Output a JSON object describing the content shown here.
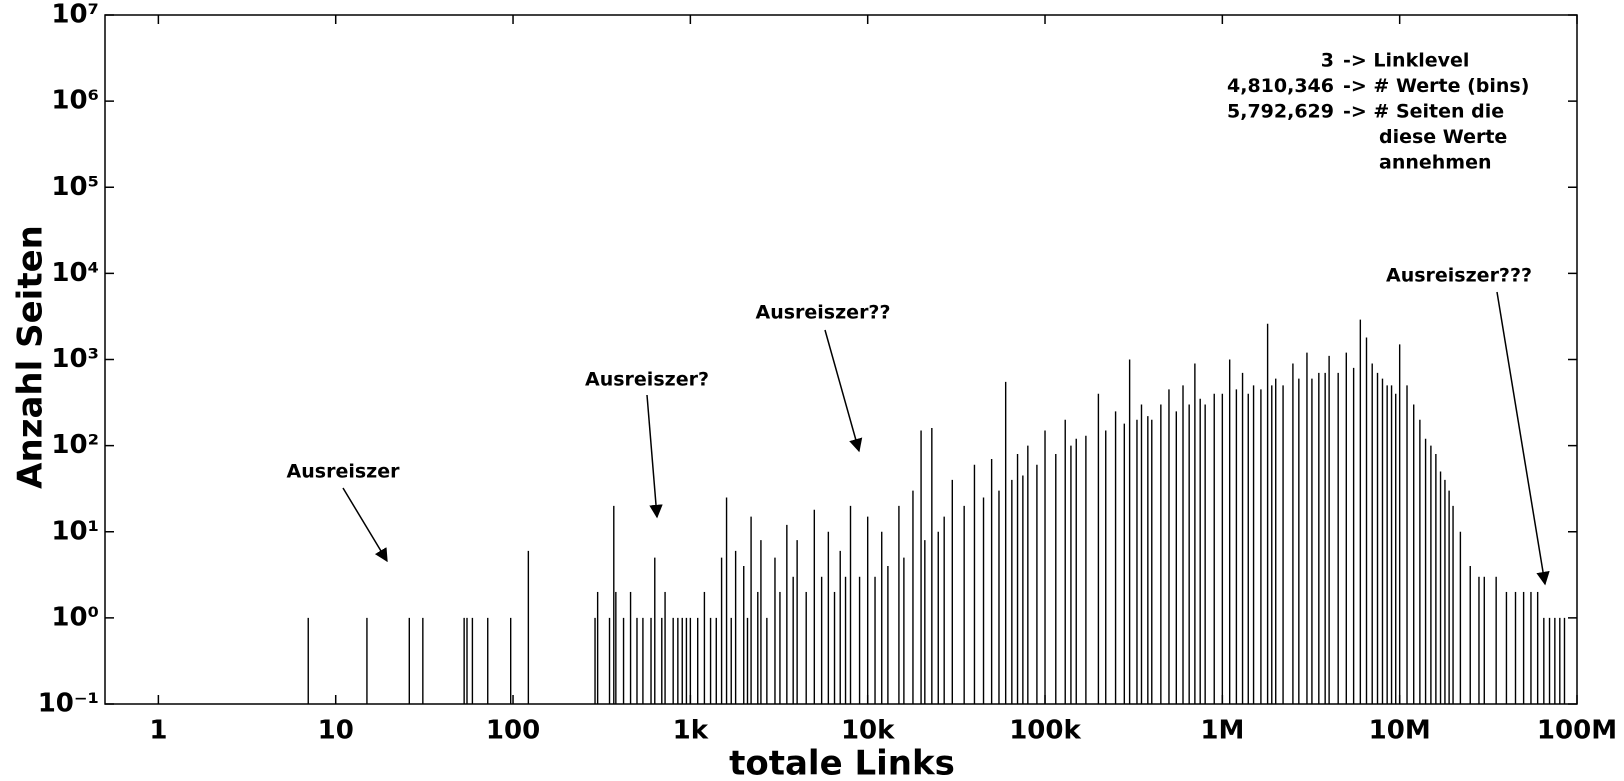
{
  "chart_data": {
    "type": "bar",
    "x_label": "totale Links",
    "y_label": "Anzahl Seiten",
    "xscale": "log",
    "yscale": "log",
    "color": "#000000",
    "xlim": [
      0.5,
      100000000
    ],
    "ylim": [
      0.1,
      10000000
    ],
    "xticks": [
      1,
      10,
      100,
      {
        "value": 1000,
        "label": "1k"
      },
      {
        "value": 10000,
        "label": "10k"
      },
      {
        "value": 100000,
        "label": "100k"
      },
      {
        "value": 1000000,
        "label": "1M"
      },
      {
        "value": 10000000,
        "label": "10M"
      },
      {
        "value": 100000000,
        "label": "100M"
      }
    ],
    "yticks": [
      {
        "value": 0.1,
        "label": "10⁻¹"
      },
      {
        "value": 1,
        "label": "10⁰"
      },
      {
        "value": 10,
        "label": "10¹"
      },
      {
        "value": 100,
        "label": "10²"
      },
      {
        "value": 1000,
        "label": "10³"
      },
      {
        "value": 10000,
        "label": "10⁴"
      },
      {
        "value": 100000,
        "label": "10⁵"
      },
      {
        "value": 1000000,
        "label": "10⁶"
      },
      {
        "value": 10000000,
        "label": "10⁷"
      }
    ],
    "annotations": [
      "Ausreiszer",
      "Ausreiszer?",
      "Ausreiszer??",
      "Ausreiszer???"
    ],
    "info": [
      {
        "number": "3",
        "text": "-> Linklevel"
      },
      {
        "number": "4,810,346",
        "text": "-> # Werte (bins)"
      },
      {
        "number": "5,792,629",
        "text": "-> # Seiten die"
      },
      {
        "text": "diese Werte"
      },
      {
        "text": "annehmen"
      }
    ],
    "x": [
      7,
      15,
      26,
      31,
      53,
      55,
      59,
      72,
      97,
      122,
      290,
      300,
      350,
      370,
      380,
      420,
      460,
      500,
      540,
      600,
      630,
      690,
      720,
      800,
      850,
      900,
      950,
      1000,
      1100,
      1200,
      1300,
      1400,
      1500,
      1600,
      1700,
      1800,
      2000,
      2100,
      2200,
      2400,
      2500,
      2700,
      3000,
      3200,
      3500,
      3800,
      4000,
      4500,
      5000,
      5500,
      6000,
      6500,
      7000,
      7500,
      8000,
      9000,
      10000,
      11000,
      12000,
      13000,
      15000,
      16000,
      18000,
      20000,
      21000,
      23000,
      25000,
      27000,
      30000,
      35000,
      40000,
      45000,
      50000,
      55000,
      60000,
      65000,
      70000,
      75000,
      80000,
      90000,
      100000,
      115000,
      130000,
      140000,
      150000,
      170000,
      200000,
      220000,
      250000,
      280000,
      300000,
      330000,
      350000,
      380000,
      400000,
      450000,
      500000,
      550000,
      600000,
      650000,
      700000,
      750000,
      800000,
      900000,
      1000000,
      1100000,
      1200000,
      1300000,
      1400000,
      1500000,
      1650000,
      1800000,
      1900000,
      2000000,
      2200000,
      2500000,
      2700000,
      3000000,
      3200000,
      3500000,
      3800000,
      4000000,
      4500000,
      5000000,
      5500000,
      6000000,
      6500000,
      7000000,
      7500000,
      8000000,
      8500000,
      9000000,
      9500000,
      10000000,
      11000000,
      12000000,
      13000000,
      14000000,
      15000000,
      16000000,
      17000000,
      18000000,
      19000000,
      20000000,
      22000000,
      25000000,
      28000000,
      30000000,
      35000000,
      40000000,
      45000000,
      50000000,
      55000000,
      60000000,
      65000000,
      70000000,
      75000000,
      80000000,
      85000000
    ],
    "values": [
      1,
      1,
      1,
      1,
      1,
      1,
      1,
      1,
      1,
      6,
      1,
      2,
      1,
      20,
      2,
      1,
      2,
      1,
      1,
      1,
      5,
      1,
      2,
      1,
      1,
      1,
      1,
      1,
      1,
      2,
      1,
      1,
      5,
      25,
      1,
      6,
      4,
      1,
      15,
      2,
      8,
      1,
      5,
      2,
      12,
      3,
      8,
      2,
      18,
      3,
      10,
      2,
      6,
      3,
      20,
      3,
      15,
      3,
      10,
      4,
      20,
      5,
      30,
      150,
      8,
      160,
      10,
      15,
      40,
      20,
      60,
      25,
      70,
      30,
      550,
      40,
      80,
      45,
      100,
      60,
      150,
      80,
      200,
      100,
      120,
      130,
      400,
      150,
      250,
      180,
      1000,
      200,
      300,
      220,
      200,
      300,
      450,
      250,
      500,
      300,
      900,
      350,
      300,
      400,
      400,
      1000,
      450,
      700,
      400,
      500,
      450,
      2600,
      500,
      600,
      500,
      900,
      600,
      1200,
      600,
      700,
      700,
      1100,
      700,
      1200,
      800,
      2900,
      1800,
      900,
      700,
      600,
      500,
      500,
      400,
      1500,
      500,
      300,
      200,
      120,
      100,
      80,
      50,
      40,
      30,
      20,
      10,
      4,
      3,
      3,
      3,
      2,
      2,
      2,
      2,
      2,
      1,
      1,
      1,
      1,
      1
    ]
  }
}
